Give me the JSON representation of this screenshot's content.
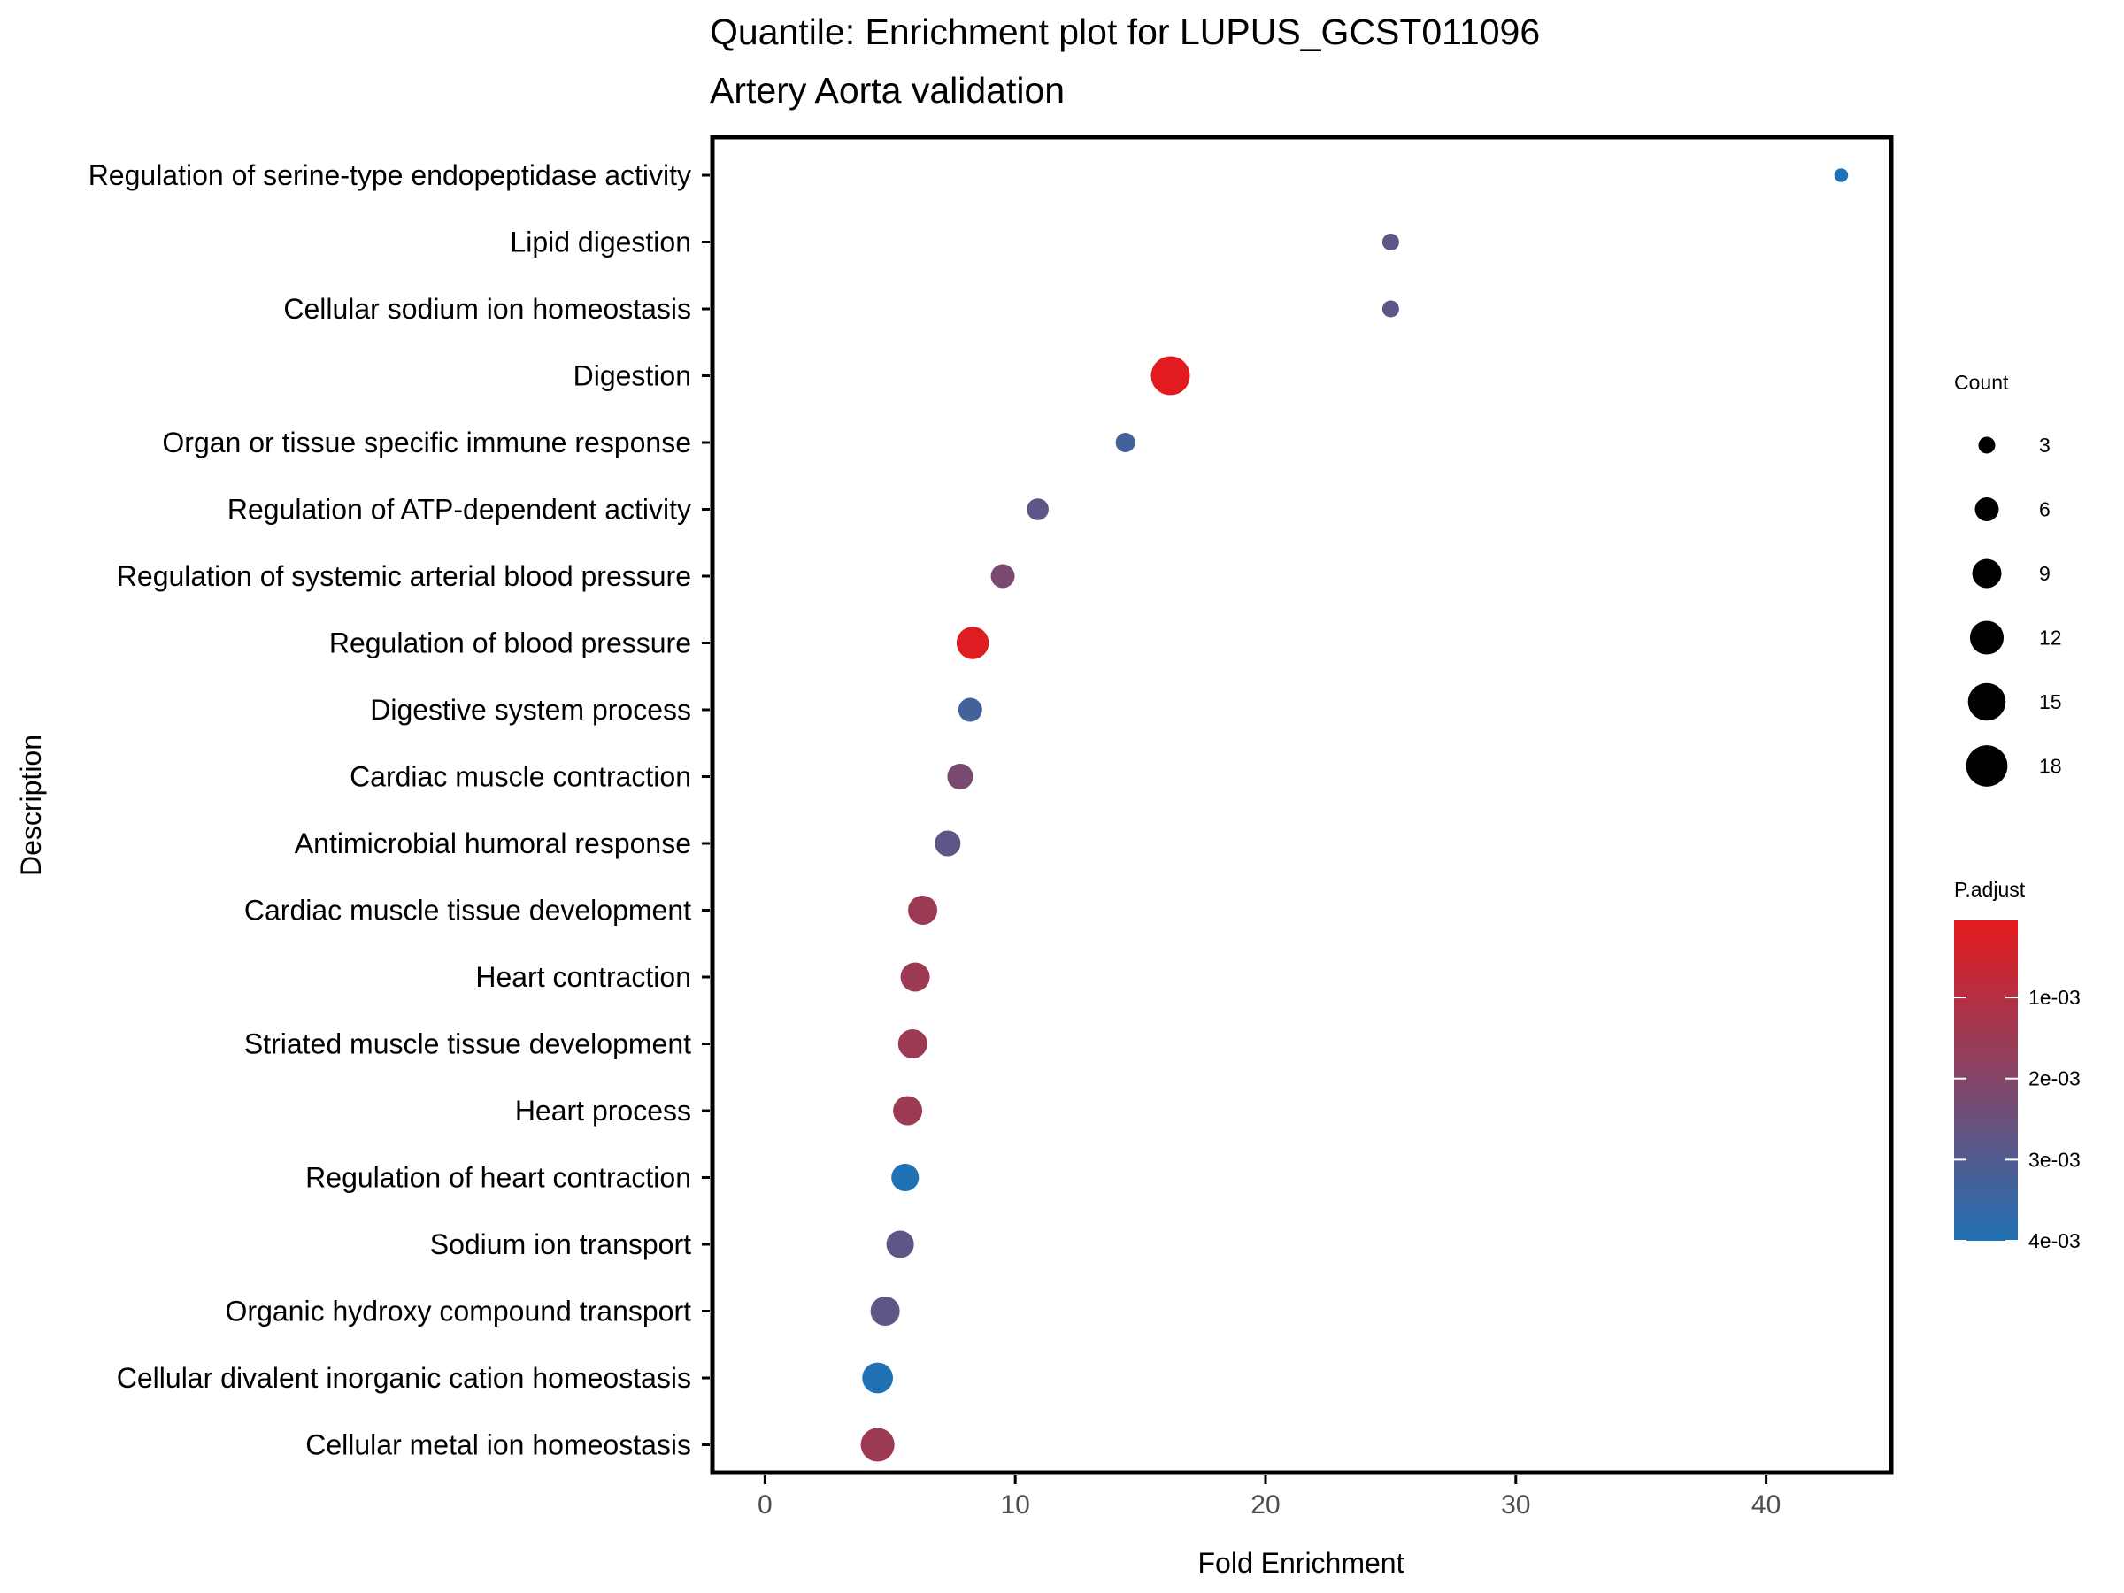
{
  "chart_data": {
    "type": "scatter",
    "title": "Quantile: Enrichment plot for LUPUS_GCST011096",
    "subtitle": "Artery Aorta validation",
    "xlabel": "Fold Enrichment",
    "ylabel": "Description",
    "xlim": [
      -2.1,
      45
    ],
    "x_ticks": [
      0,
      10,
      20,
      30,
      40
    ],
    "grid": false,
    "legend_position": "right",
    "categories": [
      "Regulation of serine-type endopeptidase activity",
      "Lipid digestion",
      "Cellular sodium ion homeostasis",
      "Digestion",
      "Organ or tissue specific immune response",
      "Regulation of ATP-dependent activity",
      "Regulation of systemic arterial blood pressure",
      "Regulation of blood pressure",
      "Digestive system process",
      "Cardiac muscle contraction",
      "Antimicrobial humoral response",
      "Cardiac muscle tissue development",
      "Heart contraction",
      "Striated muscle tissue development",
      "Heart process",
      "Regulation of heart contraction",
      "Sodium ion transport",
      "Organic hydroxy compound transport",
      "Cellular divalent inorganic cation homeostasis",
      "Cellular metal ion homeostasis"
    ],
    "points": [
      {
        "description": "Regulation of serine-type endopeptidase activity",
        "fold_enrichment": 43.0,
        "count": 2,
        "p_adjust": 0.004
      },
      {
        "description": "Lipid digestion",
        "fold_enrichment": 25.0,
        "count": 3,
        "p_adjust": 0.0028
      },
      {
        "description": "Cellular sodium ion homeostasis",
        "fold_enrichment": 25.0,
        "count": 3,
        "p_adjust": 0.0028
      },
      {
        "description": "Digestion",
        "fold_enrichment": 16.2,
        "count": 16,
        "p_adjust": 0.0001
      },
      {
        "description": "Organ or tissue specific immune response",
        "fold_enrichment": 14.4,
        "count": 4,
        "p_adjust": 0.0033
      },
      {
        "description": "Regulation of ATP-dependent activity",
        "fold_enrichment": 10.9,
        "count": 5,
        "p_adjust": 0.0028
      },
      {
        "description": "Regulation of systemic arterial blood pressure",
        "fold_enrichment": 9.5,
        "count": 6,
        "p_adjust": 0.0022
      },
      {
        "description": "Regulation of blood pressure",
        "fold_enrichment": 8.3,
        "count": 11,
        "p_adjust": 0.0002
      },
      {
        "description": "Digestive system process",
        "fold_enrichment": 8.2,
        "count": 6,
        "p_adjust": 0.0033
      },
      {
        "description": "Cardiac muscle contraction",
        "fold_enrichment": 7.8,
        "count": 7,
        "p_adjust": 0.0022
      },
      {
        "description": "Antimicrobial humoral response",
        "fold_enrichment": 7.3,
        "count": 7,
        "p_adjust": 0.0028
      },
      {
        "description": "Cardiac muscle tissue development",
        "fold_enrichment": 6.3,
        "count": 9,
        "p_adjust": 0.0015
      },
      {
        "description": "Heart contraction",
        "fold_enrichment": 6.0,
        "count": 9,
        "p_adjust": 0.0015
      },
      {
        "description": "Striated muscle tissue development",
        "fold_enrichment": 5.9,
        "count": 9,
        "p_adjust": 0.0015
      },
      {
        "description": "Heart process",
        "fold_enrichment": 5.7,
        "count": 9,
        "p_adjust": 0.0015
      },
      {
        "description": "Regulation of heart contraction",
        "fold_enrichment": 5.6,
        "count": 8,
        "p_adjust": 0.004
      },
      {
        "description": "Sodium ion transport",
        "fold_enrichment": 5.4,
        "count": 8,
        "p_adjust": 0.0028
      },
      {
        "description": "Organic hydroxy compound transport",
        "fold_enrichment": 4.8,
        "count": 9,
        "p_adjust": 0.0028
      },
      {
        "description": "Cellular divalent inorganic cation homeostasis",
        "fold_enrichment": 4.5,
        "count": 10,
        "p_adjust": 0.004
      },
      {
        "description": "Cellular metal ion homeostasis",
        "fold_enrichment": 4.5,
        "count": 12,
        "p_adjust": 0.0015
      }
    ],
    "size_legend": {
      "title": "Count",
      "breaks": [
        3,
        6,
        9,
        12,
        15,
        18
      ],
      "labels": [
        "3",
        "6",
        "9",
        "12",
        "15",
        "18"
      ]
    },
    "color_legend": {
      "title": "P.adjust",
      "low_color": "#e41a1c",
      "high_color": "#2171b5",
      "limits": [
        5e-05,
        0.004
      ],
      "breaks": [
        0.001,
        0.002,
        0.003,
        0.004
      ],
      "labels": [
        "1e-03",
        "2e-03",
        "3e-03",
        "4e-03"
      ]
    }
  }
}
